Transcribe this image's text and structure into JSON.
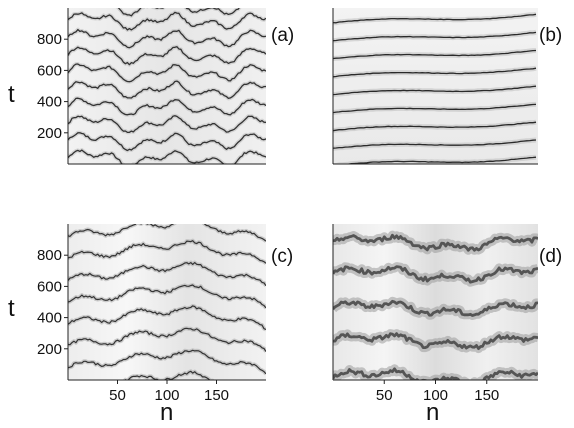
{
  "figure": {
    "panels": [
      {
        "label": "(a)",
        "description_of_bands": "oscillating stripes",
        "yticks": [
          "200",
          "400",
          "600",
          "800"
        ],
        "show_xticks": false
      },
      {
        "label": "(b)",
        "yticks": [],
        "show_xticks": false
      },
      {
        "label": "(c)",
        "yticks": [
          "200",
          "400",
          "600",
          "800"
        ],
        "show_xticks": true
      },
      {
        "label": "(d)",
        "yticks": [],
        "show_xticks": true
      }
    ],
    "xticks": [
      "50",
      "100",
      "150"
    ],
    "ylabel": "t",
    "xlabel": "n"
  },
  "chart_data": [
    {
      "type": "heatmap",
      "label": "(a)",
      "xlabel": "",
      "ylabel": "t",
      "yticks": [
        200,
        400,
        600,
        800
      ],
      "xlim": [
        0,
        200
      ],
      "ylim": [
        0,
        1000
      ]
    },
    {
      "type": "heatmap",
      "label": "(b)",
      "xlabel": "",
      "ylabel": "",
      "xlim": [
        0,
        200
      ],
      "ylim": [
        0,
        1000
      ]
    },
    {
      "type": "heatmap",
      "label": "(c)",
      "xlabel": "n",
      "ylabel": "t",
      "xticks": [
        50,
        100,
        150
      ],
      "yticks": [
        200,
        400,
        600,
        800
      ],
      "xlim": [
        0,
        200
      ],
      "ylim": [
        0,
        1000
      ]
    },
    {
      "type": "heatmap",
      "label": "(d)",
      "xlabel": "n",
      "ylabel": "",
      "xticks": [
        50,
        100,
        150
      ],
      "xlim": [
        0,
        200
      ],
      "ylim": [
        0,
        1000
      ]
    }
  ]
}
